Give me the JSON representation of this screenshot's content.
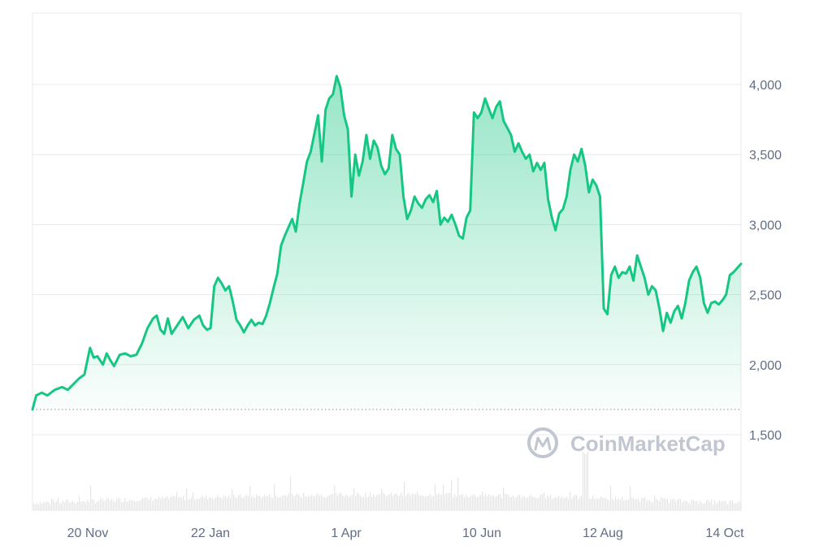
{
  "chart_data": {
    "type": "area",
    "x_ticks": [
      "20 Nov",
      "22 Jan",
      "1 Apr",
      "10 Jun",
      "12 Aug",
      "14 Oct"
    ],
    "y_ticks": [
      1500,
      2000,
      2500,
      3000,
      3500,
      4000
    ],
    "y_tick_labels": [
      "1,500",
      "2,000",
      "2,500",
      "3,000",
      "3,500",
      "4,000"
    ],
    "ylim": [
      1000,
      4500
    ],
    "baseline": 1680,
    "axis_position": "right",
    "grid": true,
    "colors": {
      "line": "#16c784",
      "area": "#16c784",
      "grid": "#e8e9ee",
      "text": "#616e85",
      "watermark": "#c1c6d1"
    },
    "watermark": "CoinMarketCap",
    "series": [
      {
        "points": [
          [
            0,
            1680
          ],
          [
            2,
            1780
          ],
          [
            5,
            1800
          ],
          [
            8,
            1780
          ],
          [
            12,
            1820
          ],
          [
            16,
            1840
          ],
          [
            19,
            1820
          ],
          [
            22,
            1860
          ],
          [
            25,
            1900
          ],
          [
            28,
            1930
          ],
          [
            31,
            2120
          ],
          [
            33,
            2050
          ],
          [
            35,
            2060
          ],
          [
            38,
            2000
          ],
          [
            40,
            2080
          ],
          [
            42,
            2030
          ],
          [
            44,
            1990
          ],
          [
            47,
            2070
          ],
          [
            50,
            2080
          ],
          [
            53,
            2060
          ],
          [
            56,
            2070
          ],
          [
            59,
            2150
          ],
          [
            62,
            2260
          ],
          [
            65,
            2330
          ],
          [
            67,
            2350
          ],
          [
            69,
            2250
          ],
          [
            71,
            2220
          ],
          [
            73,
            2330
          ],
          [
            75,
            2220
          ],
          [
            78,
            2280
          ],
          [
            81,
            2340
          ],
          [
            84,
            2260
          ],
          [
            87,
            2320
          ],
          [
            90,
            2350
          ],
          [
            92,
            2280
          ],
          [
            94,
            2250
          ],
          [
            96,
            2260
          ],
          [
            98,
            2560
          ],
          [
            100,
            2620
          ],
          [
            102,
            2580
          ],
          [
            104,
            2530
          ],
          [
            106,
            2560
          ],
          [
            108,
            2450
          ],
          [
            110,
            2320
          ],
          [
            112,
            2280
          ],
          [
            114,
            2230
          ],
          [
            116,
            2280
          ],
          [
            118,
            2320
          ],
          [
            120,
            2280
          ],
          [
            122,
            2300
          ],
          [
            124,
            2290
          ],
          [
            126,
            2350
          ],
          [
            128,
            2440
          ],
          [
            130,
            2550
          ],
          [
            132,
            2650
          ],
          [
            134,
            2850
          ],
          [
            136,
            2920
          ],
          [
            138,
            2980
          ],
          [
            140,
            3040
          ],
          [
            142,
            2950
          ],
          [
            144,
            3150
          ],
          [
            146,
            3300
          ],
          [
            148,
            3450
          ],
          [
            150,
            3520
          ],
          [
            152,
            3650
          ],
          [
            154,
            3780
          ],
          [
            156,
            3450
          ],
          [
            158,
            3820
          ],
          [
            160,
            3900
          ],
          [
            162,
            3930
          ],
          [
            164,
            4060
          ],
          [
            166,
            3980
          ],
          [
            168,
            3780
          ],
          [
            170,
            3680
          ],
          [
            171,
            3450
          ],
          [
            172,
            3200
          ],
          [
            174,
            3500
          ],
          [
            176,
            3350
          ],
          [
            178,
            3450
          ],
          [
            180,
            3640
          ],
          [
            182,
            3470
          ],
          [
            184,
            3600
          ],
          [
            186,
            3550
          ],
          [
            188,
            3420
          ],
          [
            190,
            3360
          ],
          [
            192,
            3400
          ],
          [
            194,
            3640
          ],
          [
            196,
            3540
          ],
          [
            198,
            3500
          ],
          [
            200,
            3200
          ],
          [
            202,
            3040
          ],
          [
            204,
            3100
          ],
          [
            206,
            3200
          ],
          [
            208,
            3150
          ],
          [
            210,
            3120
          ],
          [
            212,
            3180
          ],
          [
            214,
            3210
          ],
          [
            216,
            3160
          ],
          [
            218,
            3240
          ],
          [
            220,
            3000
          ],
          [
            222,
            3050
          ],
          [
            224,
            3020
          ],
          [
            226,
            3070
          ],
          [
            228,
            3000
          ],
          [
            230,
            2920
          ],
          [
            232,
            2900
          ],
          [
            234,
            3050
          ],
          [
            236,
            3100
          ],
          [
            238,
            3800
          ],
          [
            240,
            3760
          ],
          [
            242,
            3800
          ],
          [
            244,
            3900
          ],
          [
            246,
            3830
          ],
          [
            248,
            3760
          ],
          [
            250,
            3840
          ],
          [
            252,
            3880
          ],
          [
            254,
            3740
          ],
          [
            256,
            3690
          ],
          [
            258,
            3640
          ],
          [
            260,
            3520
          ],
          [
            262,
            3580
          ],
          [
            264,
            3520
          ],
          [
            266,
            3470
          ],
          [
            268,
            3500
          ],
          [
            270,
            3380
          ],
          [
            272,
            3440
          ],
          [
            274,
            3390
          ],
          [
            276,
            3440
          ],
          [
            278,
            3180
          ],
          [
            280,
            3050
          ],
          [
            282,
            2960
          ],
          [
            284,
            3080
          ],
          [
            286,
            3110
          ],
          [
            288,
            3200
          ],
          [
            290,
            3390
          ],
          [
            292,
            3500
          ],
          [
            294,
            3450
          ],
          [
            296,
            3540
          ],
          [
            298,
            3420
          ],
          [
            300,
            3230
          ],
          [
            302,
            3320
          ],
          [
            304,
            3280
          ],
          [
            306,
            3200
          ],
          [
            308,
            2400
          ],
          [
            310,
            2360
          ],
          [
            312,
            2640
          ],
          [
            314,
            2700
          ],
          [
            316,
            2620
          ],
          [
            318,
            2660
          ],
          [
            320,
            2650
          ],
          [
            322,
            2700
          ],
          [
            324,
            2600
          ],
          [
            326,
            2780
          ],
          [
            328,
            2700
          ],
          [
            330,
            2620
          ],
          [
            332,
            2500
          ],
          [
            334,
            2560
          ],
          [
            336,
            2530
          ],
          [
            338,
            2400
          ],
          [
            340,
            2240
          ],
          [
            342,
            2370
          ],
          [
            344,
            2300
          ],
          [
            346,
            2380
          ],
          [
            348,
            2420
          ],
          [
            350,
            2330
          ],
          [
            352,
            2440
          ],
          [
            354,
            2600
          ],
          [
            356,
            2660
          ],
          [
            358,
            2700
          ],
          [
            360,
            2620
          ],
          [
            362,
            2440
          ],
          [
            364,
            2370
          ],
          [
            366,
            2440
          ],
          [
            368,
            2450
          ],
          [
            370,
            2430
          ],
          [
            372,
            2460
          ],
          [
            374,
            2500
          ],
          [
            376,
            2640
          ],
          [
            378,
            2660
          ],
          [
            380,
            2690
          ],
          [
            382,
            2720
          ]
        ]
      }
    ]
  }
}
